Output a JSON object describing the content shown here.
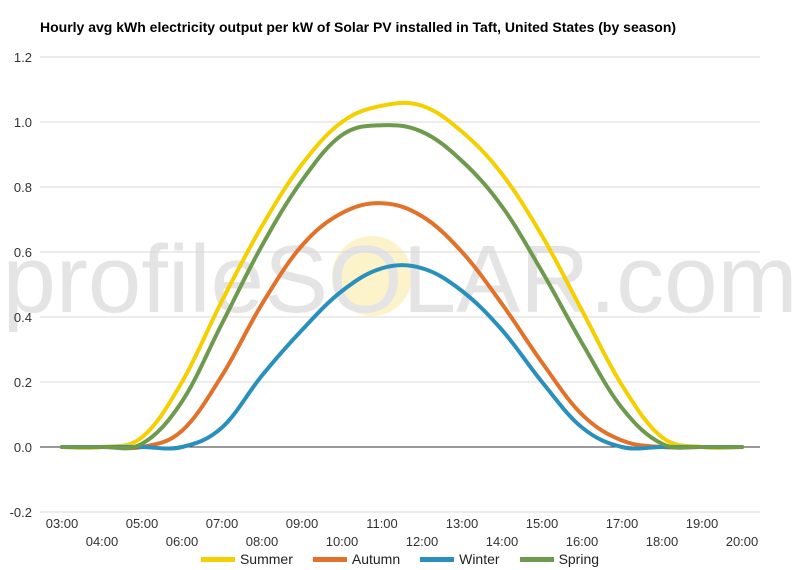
{
  "chart_data": {
    "type": "line",
    "title": "Hourly avg kWh electricity output per kW of Solar PV installed in Taft, United States (by season)",
    "xlabel": "",
    "ylabel": "",
    "watermark": "profileSOLAR.com",
    "x": [
      "03:00",
      "04:00",
      "05:00",
      "06:00",
      "07:00",
      "08:00",
      "09:00",
      "10:00",
      "11:00",
      "12:00",
      "13:00",
      "14:00",
      "15:00",
      "16:00",
      "17:00",
      "18:00",
      "19:00",
      "20:00"
    ],
    "ylim": [
      -0.2,
      1.2
    ],
    "yticks": [
      -0.2,
      0.0,
      0.2,
      0.4,
      0.6,
      0.8,
      1.0,
      1.2
    ],
    "grid": true,
    "legend_position": "bottom",
    "series": [
      {
        "name": "Summer",
        "color": "#f5d000",
        "values": [
          0,
          0,
          0.03,
          0.2,
          0.45,
          0.68,
          0.87,
          1.0,
          1.05,
          1.05,
          0.97,
          0.84,
          0.65,
          0.42,
          0.19,
          0.03,
          0,
          0
        ]
      },
      {
        "name": "Autumn",
        "color": "#e2712a",
        "values": [
          0,
          0,
          0,
          0.05,
          0.22,
          0.44,
          0.62,
          0.72,
          0.75,
          0.71,
          0.6,
          0.44,
          0.26,
          0.1,
          0.02,
          0,
          0,
          0
        ]
      },
      {
        "name": "Winter",
        "color": "#2990bd",
        "values": [
          0,
          0,
          0,
          0,
          0.06,
          0.22,
          0.36,
          0.48,
          0.55,
          0.55,
          0.48,
          0.36,
          0.2,
          0.06,
          0,
          0,
          0,
          0
        ]
      },
      {
        "name": "Spring",
        "color": "#6e9a4e",
        "values": [
          0,
          0,
          0.01,
          0.14,
          0.38,
          0.62,
          0.82,
          0.96,
          0.99,
          0.97,
          0.88,
          0.74,
          0.54,
          0.32,
          0.12,
          0.01,
          0,
          0
        ]
      }
    ]
  }
}
